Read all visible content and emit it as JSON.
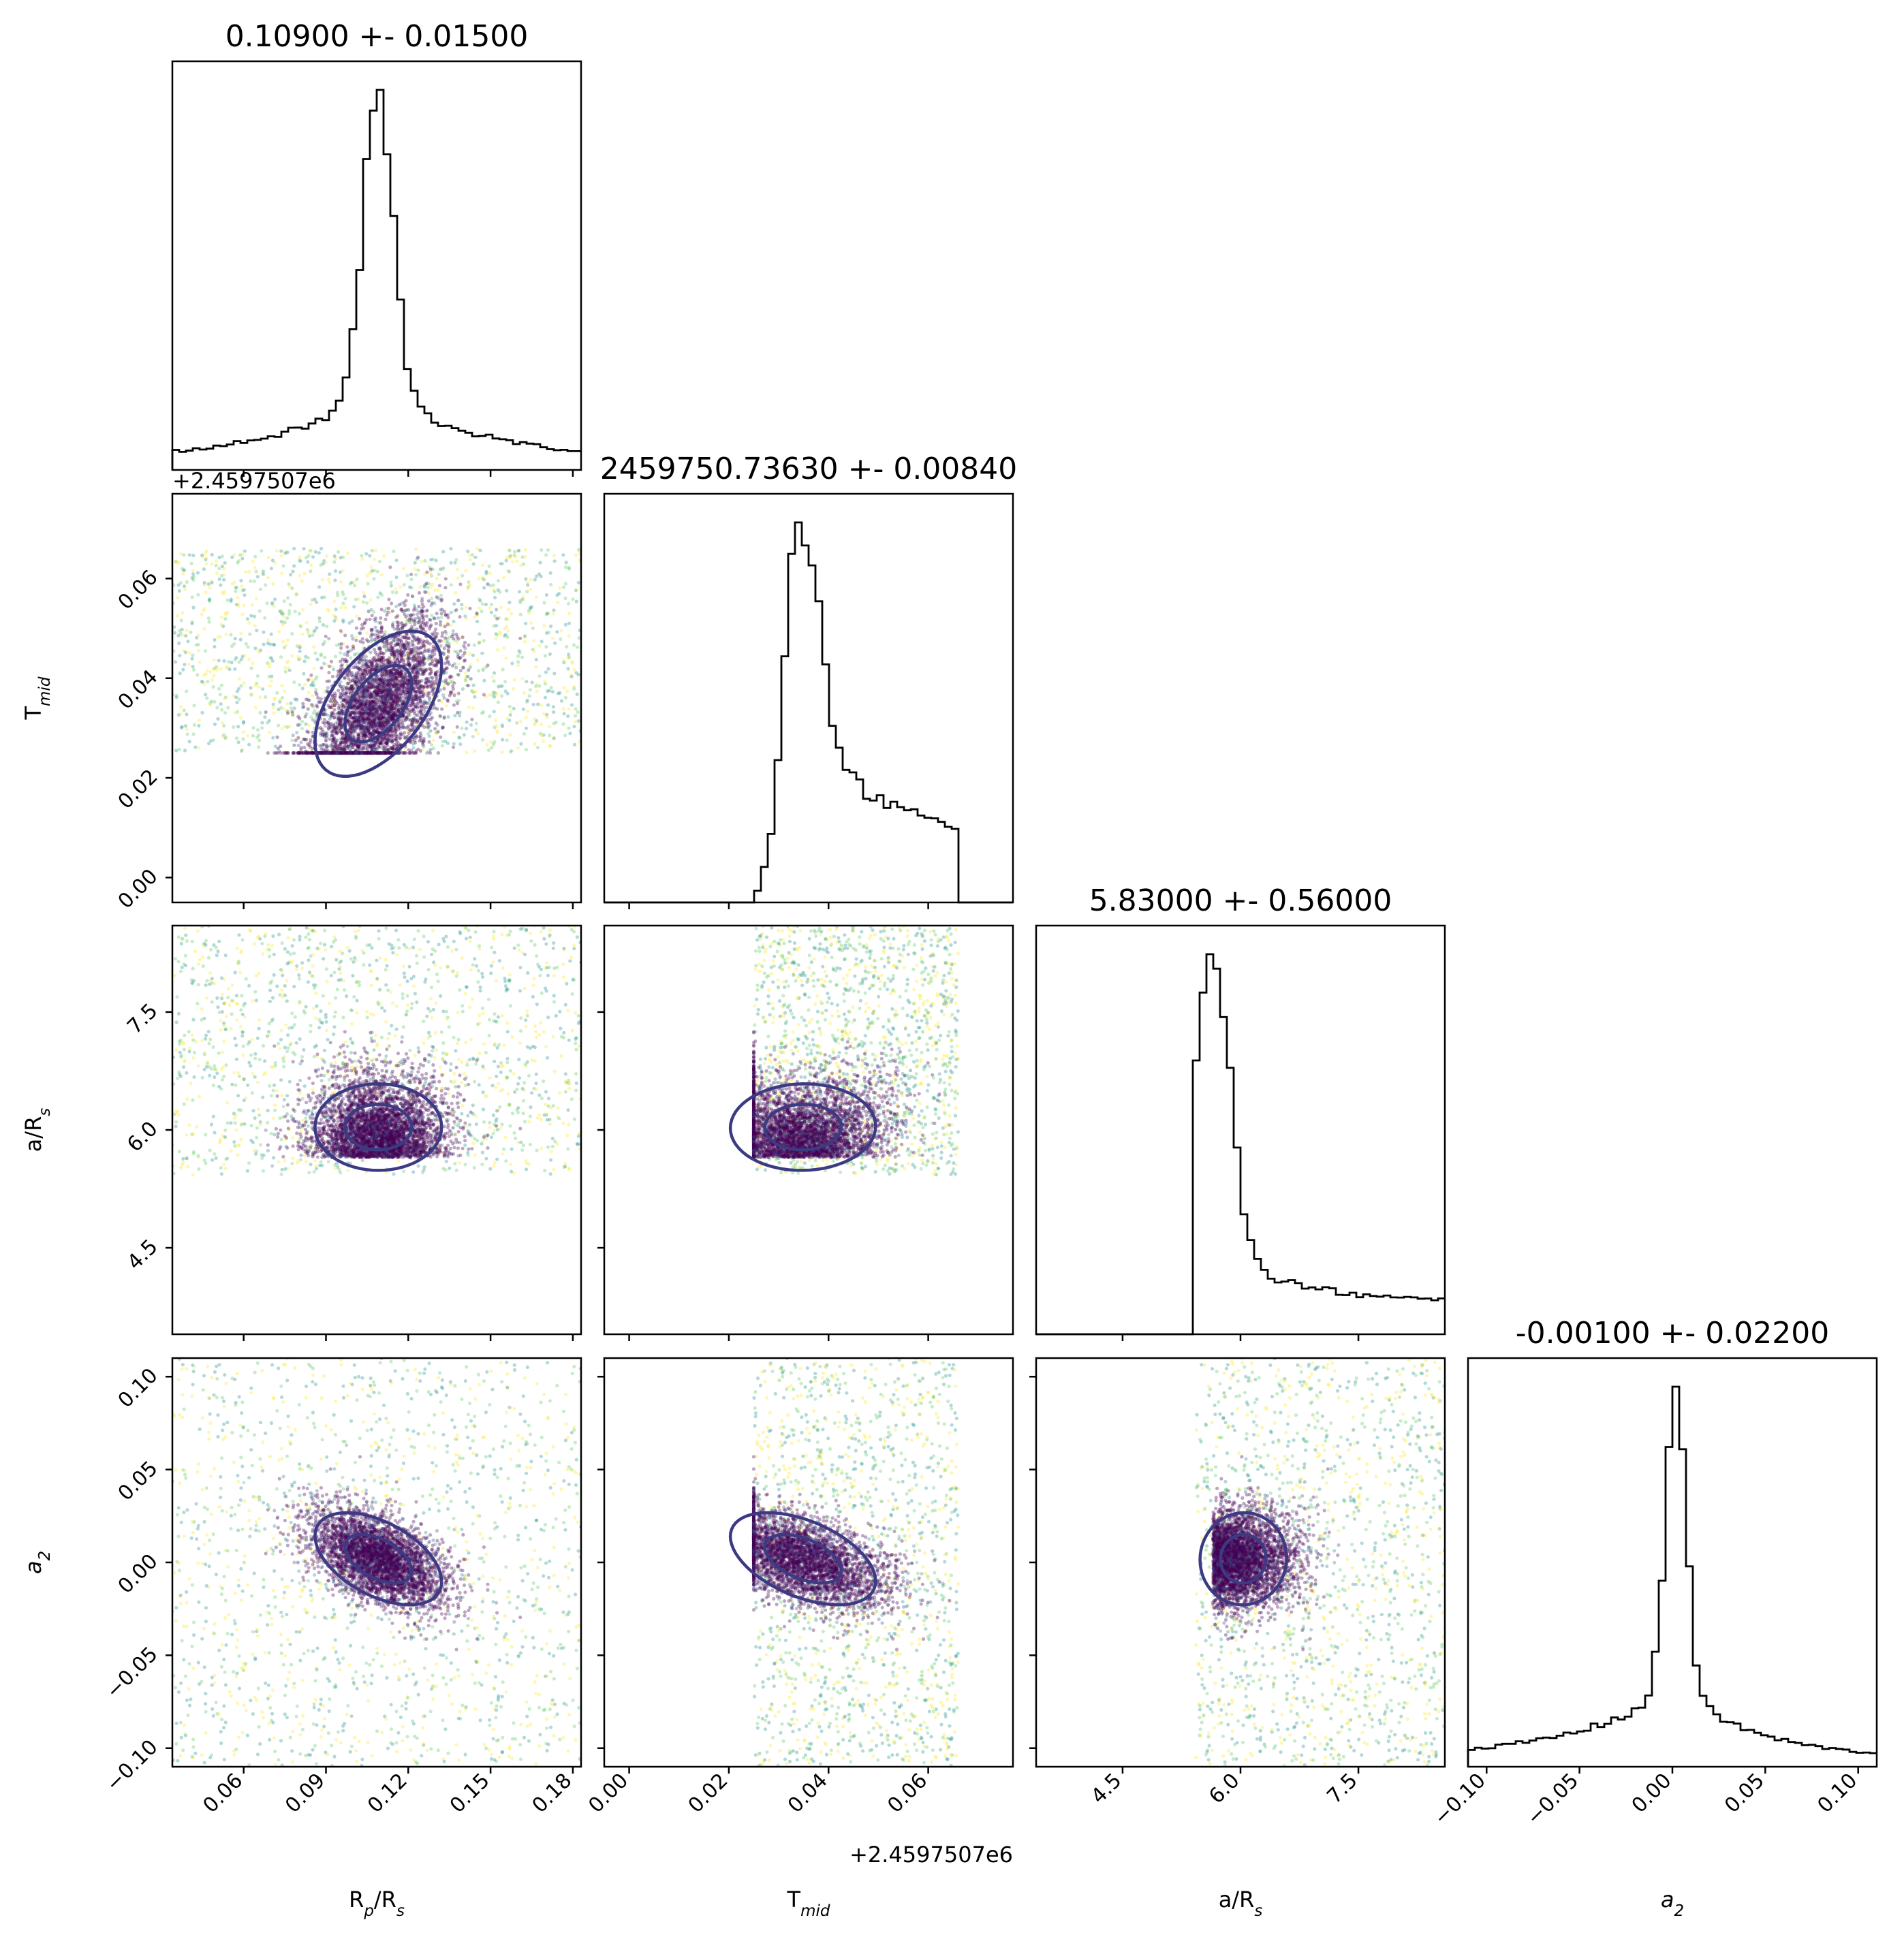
{
  "chart_data": {
    "type": "corner",
    "parameters": [
      {
        "key": "rprs",
        "title": "0.10900 +- 0.01500",
        "label_main": "R",
        "label_sub1": "p",
        "label_mid": "/R",
        "label_sub2": "s",
        "range": [
          0.034,
          0.183
        ],
        "ticks": [
          0.06,
          0.09,
          0.12,
          0.15,
          0.18
        ],
        "tick_labels": [
          "0.06",
          "0.09",
          "0.12",
          "0.15",
          "0.18"
        ],
        "dist": {
          "kind": "peak",
          "center": 0.109,
          "sigma": 0.0055,
          "tail": 0.03,
          "bg": 0.04,
          "floor": 0.02
        }
      },
      {
        "key": "tmid",
        "title": "2459750.73630 +- 0.00840",
        "label_main": "T",
        "label_sub1": "mid",
        "label_mid": "",
        "label_sub2": "",
        "offset_label": "+2.4597507e6",
        "range": [
          -0.005,
          0.077
        ],
        "ticks": [
          0.0,
          0.02,
          0.04,
          0.06
        ],
        "tick_labels": [
          "0.00",
          "0.02",
          "0.04",
          "0.06"
        ],
        "dist": {
          "kind": "bounded",
          "low": 0.025,
          "high": 0.066,
          "peak": 0.034,
          "rise": 0.0025,
          "fall": 0.004,
          "shelf": 0.35
        }
      },
      {
        "key": "ars",
        "title": "5.83000 +- 0.56000",
        "label_main": "a",
        "label_sub1": "",
        "label_mid": "/R",
        "label_sub2": "s",
        "range": [
          3.4,
          8.6
        ],
        "ticks": [
          4.5,
          6.0,
          7.5
        ],
        "tick_labels": [
          "4.5",
          "6.0",
          "7.5"
        ],
        "dist": {
          "kind": "edge",
          "low": 5.43,
          "peak": 5.65,
          "fall": 0.3,
          "tail": 1.0,
          "tailw": 0.18,
          "floor": 0.1
        }
      },
      {
        "key": "a2",
        "title": "-0.00100 +- 0.02200",
        "label_main": "a",
        "label_sub1": "2",
        "label_mid": "",
        "label_sub2": "",
        "label_italic": true,
        "range": [
          -0.11,
          0.11
        ],
        "ticks": [
          -0.1,
          -0.05,
          0.0,
          0.05,
          0.1
        ],
        "tick_labels": [
          "−0.10",
          "−0.05",
          "0.00",
          "0.05",
          "0.10"
        ],
        "dist": {
          "kind": "peak",
          "center": 0.002,
          "sigma": 0.0055,
          "tail": 0.035,
          "bg": 0.03,
          "floor": 0.02,
          "skew_left": true
        }
      }
    ],
    "point_colors": [
      "#440154",
      "#3b528b",
      "#21918c",
      "#5ec962",
      "#fde725"
    ],
    "contour_colors": {
      "inner": "#3b3a82",
      "outer": "#f7e227"
    },
    "grid": false,
    "legend": "none"
  }
}
